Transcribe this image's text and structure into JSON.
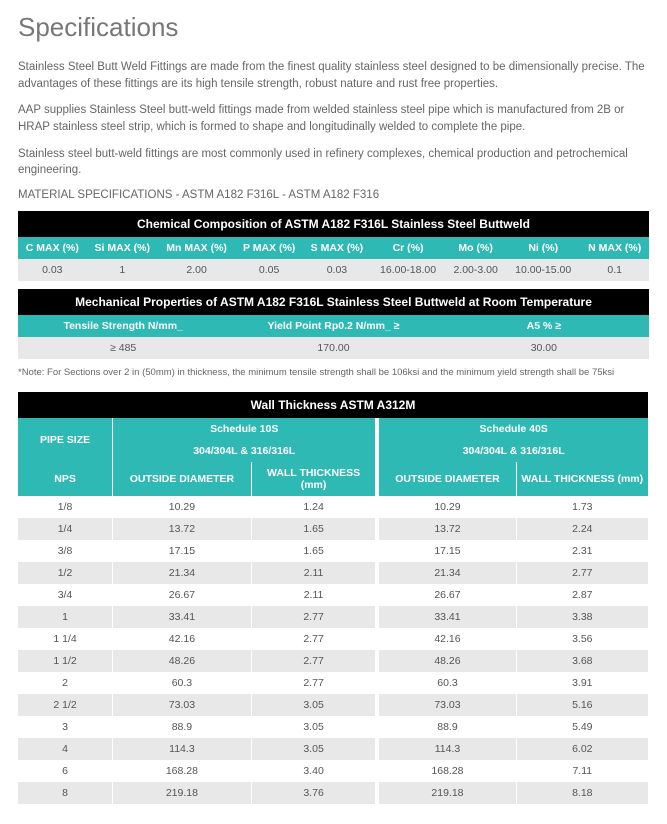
{
  "page_title": "Specifications",
  "paragraphs": [
    "Stainless Steel Butt Weld Fittings are made from the finest quality stainless steel designed to be dimensionally precise. The advantages of these fittings are its high tensile strength, robust nature and rust free properties.",
    "AAP supplies Stainless Steel butt-weld fittings made from welded stainless steel pipe which is manufactured from 2B or HRAP stainless steel strip, which is formed to shape and longitudinally welded to complete the pipe.",
    "Stainless steel butt-weld fittings are most commonly used in refinery complexes, chemical production and petrochemical engineering."
  ],
  "material_spec_line": "MATERIAL SPECIFICATIONS - ASTM A182 F316L - ASTM A182 F316",
  "chem": {
    "title": "Chemical Composition of ASTM A182 F316L Stainless Steel Buttweld",
    "headers": [
      "C MAX (%)",
      "Si MAX (%)",
      "Mn MAX (%)",
      "P MAX (%)",
      "S MAX (%)",
      "Cr (%)",
      "Mo (%)",
      "Ni (%)",
      "N MAX (%)"
    ],
    "values": [
      "0.03",
      "1",
      "2.00",
      "0.05",
      "0.03",
      "16.00-18.00",
      "2.00-3.00",
      "10.00-15.00",
      "0.1"
    ]
  },
  "mech": {
    "title": "Mechanical Properties of  ASTM A182 F316L Stainless Steel Buttweld at Room Temperature",
    "headers": [
      "Tensile Strength N/mm_",
      "Yield Point Rp0.2  N/mm_ ≥",
      "A5 % ≥"
    ],
    "values": [
      "≥ 485",
      "170.00",
      "30.00"
    ]
  },
  "note": "*Note: For Sections over 2 in (50mm) in thickness, the minimum tensile strength shall be 106ksi and the minimum yield strength shall be 75ksi",
  "wall": {
    "title": "Wall Thickness ASTM A312M",
    "pipe_size_label": "PIPE SIZE",
    "sched10_label": "Schedule 10S",
    "sched40_label": "Schedule 40S",
    "mat_label": "304/304L & 316/316L",
    "col_nps": "NPS",
    "col_od": "OUTSIDE DIAMETER",
    "col_wt_mm": "WALL THICKNESS (mm)",
    "rows": [
      {
        "nps": "1/8",
        "od10": "10.29",
        "wt10": "1.24",
        "od40": "10.29",
        "wt40": "1.73"
      },
      {
        "nps": "1/4",
        "od10": "13.72",
        "wt10": "1.65",
        "od40": "13.72",
        "wt40": "2.24"
      },
      {
        "nps": "3/8",
        "od10": "17.15",
        "wt10": "1.65",
        "od40": "17.15",
        "wt40": "2.31"
      },
      {
        "nps": "1/2",
        "od10": "21.34",
        "wt10": "2.11",
        "od40": "21.34",
        "wt40": "2.77"
      },
      {
        "nps": "3/4",
        "od10": "26.67",
        "wt10": "2.11",
        "od40": "26.67",
        "wt40": "2.87"
      },
      {
        "nps": "1",
        "od10": "33.41",
        "wt10": "2.77",
        "od40": "33.41",
        "wt40": "3.38"
      },
      {
        "nps": "1 1/4",
        "od10": "42.16",
        "wt10": "2.77",
        "od40": "42.16",
        "wt40": "3.56"
      },
      {
        "nps": "1 1/2",
        "od10": "48.26",
        "wt10": "2.77",
        "od40": "48.26",
        "wt40": "3.68"
      },
      {
        "nps": "2",
        "od10": "60.3",
        "wt10": "2.77",
        "od40": "60.3",
        "wt40": "3.91"
      },
      {
        "nps": "2 1/2",
        "od10": "73.03",
        "wt10": "3.05",
        "od40": "73.03",
        "wt40": "5.16"
      },
      {
        "nps": "3",
        "od10": "88.9",
        "wt10": "3.05",
        "od40": "88.9",
        "wt40": "5.49"
      },
      {
        "nps": "4",
        "od10": "114.3",
        "wt10": "3.05",
        "od40": "114.3",
        "wt40": "6.02"
      },
      {
        "nps": "6",
        "od10": "168.28",
        "wt10": "3.40",
        "od40": "168.28",
        "wt40": "7.11"
      },
      {
        "nps": "8",
        "od10": "219.18",
        "wt10": "3.76",
        "od40": "219.18",
        "wt40": "8.18"
      }
    ]
  },
  "colors": {
    "teal": "#2fb9b4",
    "black": "#000000",
    "row_grey": "#e8e8e8",
    "text": "#555555"
  }
}
